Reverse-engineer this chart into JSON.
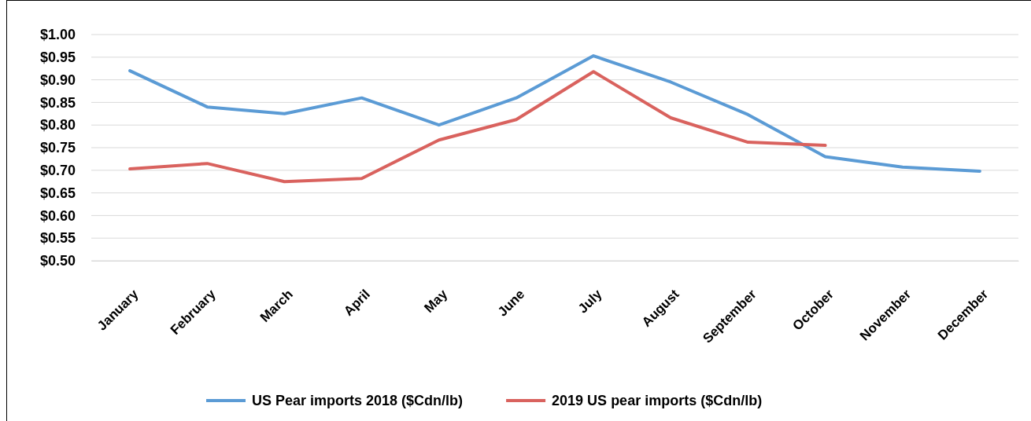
{
  "chart_data": {
    "type": "line",
    "categories": [
      "January",
      "February",
      "March",
      "April",
      "May",
      "June",
      "July",
      "August",
      "September",
      "October",
      "November",
      "December"
    ],
    "series": [
      {
        "name": "US Pear imports 2018 ($Cdn/lb)",
        "color": "#5b9bd5",
        "values": [
          0.92,
          0.84,
          0.825,
          0.86,
          0.8,
          0.86,
          0.953,
          0.895,
          0.823,
          0.73,
          0.707,
          0.698
        ]
      },
      {
        "name": "2019 US pear imports ($Cdn/lb)",
        "color": "#d9625e",
        "values": [
          0.703,
          0.715,
          0.675,
          0.682,
          0.767,
          0.812,
          0.918,
          0.816,
          0.762,
          0.755,
          null,
          null
        ]
      }
    ],
    "ylim": [
      0.5,
      1.0
    ],
    "yticks": [
      {
        "value": 0.5,
        "label": "$0.50"
      },
      {
        "value": 0.55,
        "label": "$0.55"
      },
      {
        "value": 0.6,
        "label": "$0.60"
      },
      {
        "value": 0.65,
        "label": "$0.65"
      },
      {
        "value": 0.7,
        "label": "$0.70"
      },
      {
        "value": 0.75,
        "label": "$0.75"
      },
      {
        "value": 0.8,
        "label": "$0.80"
      },
      {
        "value": 0.85,
        "label": "$0.85"
      },
      {
        "value": 0.9,
        "label": "$0.90"
      },
      {
        "value": 0.95,
        "label": "$0.95"
      },
      {
        "value": 1.0,
        "label": "$1.00"
      }
    ],
    "grid": "y",
    "legend": "bottom",
    "marker": "none",
    "line_style": "solid"
  }
}
